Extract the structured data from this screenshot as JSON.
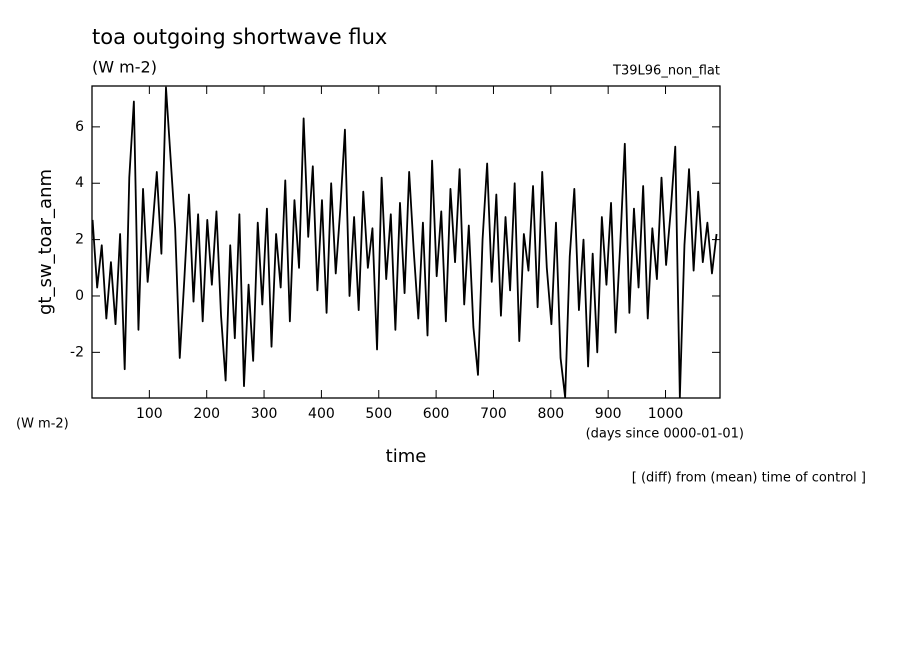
{
  "chart_data": {
    "type": "line",
    "title": "toa outgoing shortwave flux",
    "subtitle": "(W m-2)",
    "run_label": "T39L96_non_flat",
    "y_axis_label": "gt_sw_toar_anm",
    "y_unit_label": "(W m-2)",
    "x_unit_label": "(days since 0000-01-01)",
    "x_axis_label": "time",
    "note": "[ (diff) from (mean) time of control ]",
    "xlim": [
      0,
      1095
    ],
    "ylim": [
      -3.62,
      7.45
    ],
    "xticks": [
      100,
      200,
      300,
      400,
      500,
      600,
      700,
      800,
      900,
      1000
    ],
    "yticks": [
      -2,
      0,
      2,
      4,
      6
    ],
    "grid": false,
    "x": [
      1,
      9,
      17,
      25,
      33,
      41,
      49,
      57,
      65,
      73,
      81,
      89,
      97,
      105,
      113,
      121,
      129,
      137,
      145,
      153,
      161,
      169,
      177,
      185,
      193,
      201,
      209,
      217,
      225,
      233,
      241,
      249,
      257,
      265,
      273,
      281,
      289,
      297,
      305,
      313,
      321,
      329,
      337,
      345,
      353,
      361,
      369,
      377,
      385,
      393,
      401,
      409,
      417,
      425,
      433,
      441,
      449,
      457,
      465,
      473,
      481,
      489,
      497,
      505,
      513,
      521,
      529,
      537,
      545,
      553,
      561,
      569,
      577,
      585,
      593,
      601,
      609,
      617,
      625,
      633,
      641,
      649,
      657,
      665,
      673,
      681,
      689,
      697,
      705,
      713,
      721,
      729,
      737,
      745,
      753,
      761,
      769,
      777,
      785,
      793,
      801,
      809,
      817,
      825,
      833,
      841,
      849,
      857,
      865,
      873,
      881,
      889,
      897,
      905,
      913,
      921,
      929,
      937,
      945,
      953,
      961,
      969,
      977,
      985,
      993,
      1001,
      1009,
      1017,
      1025,
      1033,
      1041,
      1049,
      1057,
      1065,
      1073,
      1081,
      1089
    ],
    "series": [
      {
        "name": "gt_sw_toar_anm",
        "color": "#000000",
        "values": [
          2.7,
          0.3,
          1.8,
          -0.8,
          1.2,
          -1.0,
          2.2,
          -2.6,
          4.2,
          6.9,
          -1.2,
          3.8,
          0.5,
          2.3,
          4.4,
          1.5,
          7.4,
          4.9,
          2.4,
          -2.2,
          0.6,
          3.6,
          -0.2,
          2.9,
          -0.9,
          2.7,
          0.4,
          3.0,
          -0.7,
          -3.0,
          1.8,
          -1.5,
          2.9,
          -3.2,
          0.4,
          -2.3,
          2.6,
          -0.3,
          3.1,
          -1.8,
          2.2,
          0.3,
          4.1,
          -0.9,
          3.4,
          1.0,
          6.3,
          2.1,
          4.6,
          0.2,
          3.4,
          -0.6,
          4.0,
          0.8,
          3.1,
          5.9,
          0.0,
          2.8,
          -0.5,
          3.7,
          1.0,
          2.4,
          -1.9,
          4.2,
          0.6,
          2.9,
          -1.2,
          3.3,
          0.1,
          4.4,
          1.6,
          -0.8,
          2.6,
          -1.4,
          4.8,
          0.7,
          3.0,
          -0.9,
          3.8,
          1.2,
          4.5,
          -0.3,
          2.5,
          -1.1,
          -2.8,
          2.0,
          4.7,
          0.5,
          3.6,
          -0.7,
          2.8,
          0.2,
          4.0,
          -1.6,
          2.2,
          0.9,
          3.9,
          -0.4,
          4.4,
          1.0,
          -1.0,
          2.6,
          -2.2,
          -3.6,
          1.4,
          3.8,
          -0.5,
          2.0,
          -2.5,
          1.5,
          -2.0,
          2.8,
          0.4,
          3.3,
          -1.3,
          1.8,
          5.4,
          -0.6,
          3.1,
          0.3,
          3.9,
          -0.8,
          2.4,
          0.6,
          4.2,
          1.1,
          3.0,
          5.3,
          -3.6,
          1.8,
          4.5,
          0.9,
          3.7,
          1.2,
          2.6,
          0.8,
          2.2
        ]
      }
    ]
  }
}
